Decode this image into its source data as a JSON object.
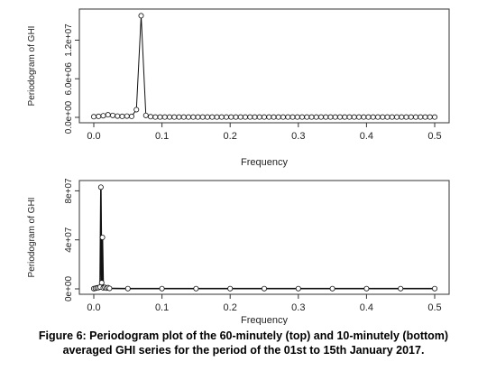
{
  "chart_data": [
    {
      "type": "line",
      "xlabel": "Frequency",
      "ylabel": "Periodogram of GHI",
      "xlim": [
        0,
        0.5
      ],
      "ylim": [
        0,
        16000000
      ],
      "x_ticks": [
        "0.0",
        "0.1",
        "0.2",
        "0.3",
        "0.4",
        "0.5"
      ],
      "y_ticks": [
        "0.0e+00",
        "6.0e+06",
        "1.2e+07"
      ],
      "y_tick_values": [
        0,
        6000000,
        12000000
      ],
      "series": [
        {
          "x": [
            0.0,
            0.00694,
            0.01389,
            0.02083,
            0.02778,
            0.03472,
            0.04167,
            0.04861,
            0.05556,
            0.0625,
            0.06944,
            0.07639,
            0.08333,
            0.09028,
            0.09722,
            0.10417,
            0.11111,
            0.11806,
            0.125,
            0.13194,
            0.13889,
            0.14583,
            0.15278,
            0.15972,
            0.16667,
            0.17361,
            0.18056,
            0.1875,
            0.19444,
            0.20139,
            0.20833,
            0.21528,
            0.22222,
            0.22917,
            0.23611,
            0.24306,
            0.25,
            0.25694,
            0.26389,
            0.27083,
            0.27778,
            0.28472,
            0.29167,
            0.29861,
            0.30556,
            0.3125,
            0.31944,
            0.32639,
            0.33333,
            0.34028,
            0.34722,
            0.35417,
            0.36111,
            0.36806,
            0.375,
            0.38194,
            0.38889,
            0.39583,
            0.40278,
            0.40972,
            0.41667,
            0.42361,
            0.43056,
            0.4375,
            0.44444,
            0.45139,
            0.45833,
            0.46528,
            0.47222,
            0.47917,
            0.48611,
            0.49306,
            0.5
          ],
          "y": [
            100000,
            150000,
            250000,
            400000,
            300000,
            200000,
            150000,
            200000,
            150000,
            1200000,
            15800000,
            300000,
            100000,
            50000,
            50000,
            50000,
            50000,
            50000,
            50000,
            50000,
            50000,
            50000,
            50000,
            50000,
            50000,
            50000,
            50000,
            50000,
            50000,
            50000,
            50000,
            50000,
            50000,
            50000,
            50000,
            50000,
            50000,
            50000,
            50000,
            50000,
            50000,
            50000,
            50000,
            50000,
            50000,
            50000,
            50000,
            50000,
            50000,
            50000,
            50000,
            50000,
            50000,
            50000,
            50000,
            50000,
            50000,
            50000,
            50000,
            50000,
            50000,
            50000,
            50000,
            50000,
            50000,
            50000,
            50000,
            50000,
            50000,
            50000,
            50000,
            50000,
            50000
          ]
        }
      ]
    },
    {
      "type": "line",
      "xlabel": "Frequency",
      "ylabel": "Periodogram of GHI",
      "xlim": [
        0,
        0.5
      ],
      "ylim": [
        0,
        84000000
      ],
      "x_ticks": [
        "0.0",
        "0.1",
        "0.2",
        "0.3",
        "0.4",
        "0.5"
      ],
      "y_ticks": [
        "0e+00",
        "4e+07",
        "8e+07"
      ],
      "y_tick_values": [
        0,
        40000000,
        80000000
      ],
      "series": [
        {
          "x": [
            0.0,
            0.0023,
            0.0046,
            0.0069,
            0.0092,
            0.0104,
            0.0116,
            0.0127,
            0.0139,
            0.0162,
            0.0185,
            0.0208,
            0.0231,
            0.05,
            0.1,
            0.15,
            0.2,
            0.25,
            0.3,
            0.35,
            0.4,
            0.45,
            0.5
          ],
          "y": [
            200000,
            500000,
            800000,
            1000000,
            1500000,
            83000000,
            5000000,
            42000000,
            800000,
            1200000,
            600000,
            1000000,
            400000,
            200000,
            200000,
            200000,
            200000,
            200000,
            200000,
            200000,
            200000,
            200000,
            200000
          ]
        }
      ]
    }
  ],
  "caption": {
    "line1": "Figure 6: Periodogram plot of the 60-minutely (top) and 10-minutely (bottom)",
    "line2": "averaged GHI series for the period of the 01st to 15th January 2017."
  }
}
